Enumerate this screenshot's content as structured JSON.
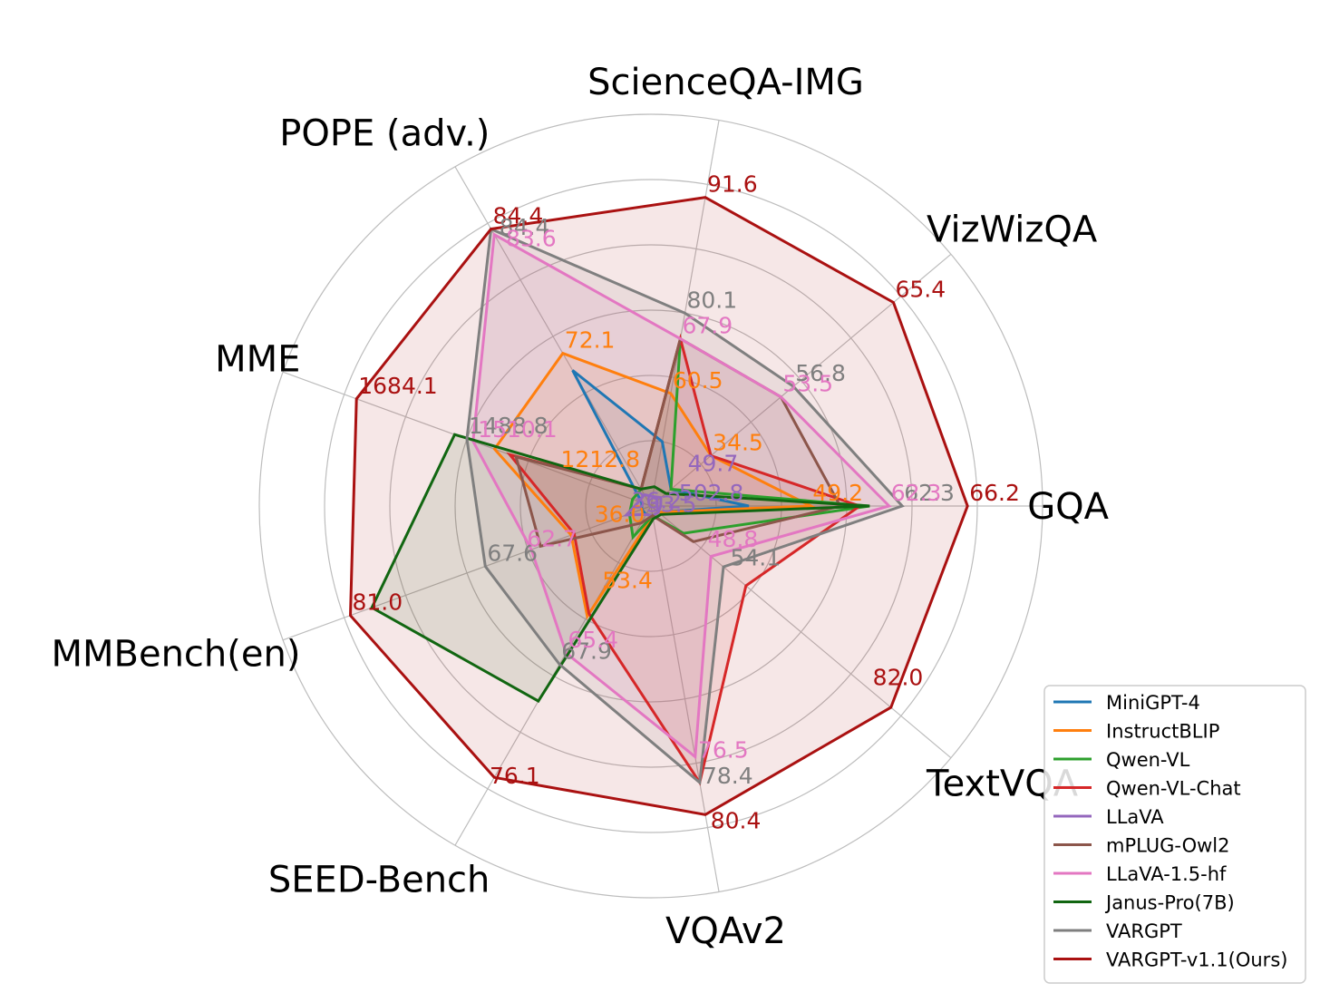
{
  "chart_data": {
    "type": "radar",
    "axes": [
      "GQA",
      "VizWizQA",
      "ScienceQA-IMG",
      "POPE (adv.)",
      "MME",
      "MMBench(en)",
      "SEED-Bench",
      "VQAv2",
      "TextVQA"
    ],
    "grid": true,
    "legend_position": "bottom-right",
    "series": [
      {
        "name": "MiniGPT-4",
        "color": "#1f77b4",
        "values": [
          0.3,
          0.08,
          0.2,
          0.48,
          0.03,
          0.03,
          0.03,
          0.03,
          0.03
        ]
      },
      {
        "name": "InstructBLIP",
        "color": "#ff7f0e",
        "values": [
          0.49,
          0.24,
          0.35,
          0.54,
          0.51,
          0.26,
          0.39,
          0.03,
          0.03
        ]
      },
      {
        "name": "Qwen-VL",
        "color": "#2ca02c",
        "values": [
          0.67,
          0.08,
          0.52,
          0.06,
          0.06,
          0.07,
          0.11,
          0.03,
          0.13
        ]
      },
      {
        "name": "Qwen-VL-Chat",
        "color": "#d62728",
        "values": [
          0.64,
          0.24,
          0.52,
          0.06,
          0.46,
          0.25,
          0.38,
          0.86,
          0.38
        ]
      },
      {
        "name": "LLaVA",
        "color": "#9467bd",
        "values": [
          0.03,
          0.04,
          0.03,
          0.04,
          0.04,
          0.08,
          0.03,
          0.03,
          0.03
        ]
      },
      {
        "name": "mPLUG-Owl2",
        "color": "#8c564b",
        "values": [
          0.58,
          0.52,
          0.52,
          0.06,
          0.44,
          0.36,
          0.06,
          0.03,
          0.17
        ]
      },
      {
        "name": "LLaVA-1.5-hf",
        "color": "#e377c2",
        "values": [
          0.73,
          0.52,
          0.52,
          0.96,
          0.58,
          0.39,
          0.52,
          0.78,
          0.24
        ]
      },
      {
        "name": "Janus-Pro(7B)",
        "color": "#116611",
        "values": [
          0.67,
          0.06,
          0.06,
          0.06,
          0.64,
          0.91,
          0.69,
          0.04,
          0.04
        ]
      },
      {
        "name": "VARGPT",
        "color": "#7f7f7f",
        "values": [
          0.77,
          0.57,
          0.6,
          0.98,
          0.6,
          0.54,
          0.56,
          0.86,
          0.29
        ]
      },
      {
        "name": "VARGPT-v1.1(Ours)",
        "color": "#aa1111",
        "values": [
          0.97,
          0.97,
          0.96,
          0.98,
          0.96,
          0.98,
          0.96,
          0.96,
          0.96
        ]
      }
    ],
    "annotations": [
      {
        "text": "49.2",
        "color": "#ff7f0e",
        "axis": 0,
        "r": 0.49
      },
      {
        "text": "66.2",
        "color": "#aa1111",
        "axis": 0,
        "r": 0.97
      },
      {
        "text": "62.3",
        "color": "#7f7f7f",
        "axis": 0,
        "r": 0.77
      },
      {
        "text": "62.3",
        "color": "#e377c2",
        "axis": 0,
        "r": 0.73
      },
      {
        "text": "502.8",
        "color": "#9467bd",
        "axis": 0,
        "r": 0.08
      },
      {
        "text": "65.4",
        "color": "#aa1111",
        "axis": 1,
        "r": 0.97
      },
      {
        "text": "56.8",
        "color": "#7f7f7f",
        "axis": 1,
        "r": 0.57
      },
      {
        "text": "53.5",
        "color": "#e377c2",
        "axis": 1,
        "r": 0.52
      },
      {
        "text": "34.5",
        "color": "#ff7f0e",
        "axis": 1,
        "r": 0.24
      },
      {
        "text": "49.7",
        "color": "#9467bd",
        "axis": 1,
        "r": 0.14
      },
      {
        "text": "91.6",
        "color": "#aa1111",
        "axis": 2,
        "r": 0.96
      },
      {
        "text": "80.1",
        "color": "#7f7f7f",
        "axis": 2,
        "r": 0.6
      },
      {
        "text": "67.9",
        "color": "#e377c2",
        "axis": 2,
        "r": 0.52
      },
      {
        "text": "60.5",
        "color": "#ff7f0e",
        "axis": 2,
        "r": 0.35
      },
      {
        "text": "84.4",
        "color": "#aa1111",
        "axis": 3,
        "r": 0.98
      },
      {
        "text": "84.4",
        "color": "#7f7f7f",
        "axis": 3,
        "r": 0.94
      },
      {
        "text": "83.6",
        "color": "#e377c2",
        "axis": 3,
        "r": 0.9
      },
      {
        "text": "72.1",
        "color": "#ff7f0e",
        "axis": 3,
        "r": 0.54
      },
      {
        "text": "1684.1",
        "color": "#aa1111",
        "axis": 4,
        "r": 0.96
      },
      {
        "text": "1488.8",
        "color": "#7f7f7f",
        "axis": 4,
        "r": 0.6
      },
      {
        "text": "1510.1",
        "color": "#e377c2",
        "axis": 4,
        "r": 0.57
      },
      {
        "text": "1212.8",
        "color": "#ff7f0e",
        "axis": 4,
        "r": 0.3
      },
      {
        "text": "81.0",
        "color": "#aa1111",
        "axis": 5,
        "r": 0.98
      },
      {
        "text": "67.6",
        "color": "#7f7f7f",
        "axis": 5,
        "r": 0.54
      },
      {
        "text": "62.7",
        "color": "#e377c2",
        "axis": 5,
        "r": 0.41
      },
      {
        "text": "36.0",
        "color": "#ff7f0e",
        "axis": 5,
        "r": 0.19
      },
      {
        "text": "36.2",
        "color": "#9467bd",
        "axis": 5,
        "r": 0.07
      },
      {
        "text": "76.1",
        "color": "#aa1111",
        "axis": 6,
        "r": 1.0
      },
      {
        "text": "67.9",
        "color": "#7f7f7f",
        "axis": 6,
        "r": 0.56
      },
      {
        "text": "65.4",
        "color": "#e377c2",
        "axis": 6,
        "r": 0.52
      },
      {
        "text": "53.4",
        "color": "#ff7f0e",
        "axis": 6,
        "r": 0.31
      },
      {
        "text": "33.5",
        "color": "#9467bd",
        "axis": 6,
        "r": 0.04
      },
      {
        "text": "80.4",
        "color": "#aa1111",
        "axis": 7,
        "r": 1.02
      },
      {
        "text": "78.4",
        "color": "#7f7f7f",
        "axis": 7,
        "r": 0.88
      },
      {
        "text": "76.5",
        "color": "#e377c2",
        "axis": 7,
        "r": 0.8
      },
      {
        "text": "82.0",
        "color": "#aa1111",
        "axis": 8,
        "r": 0.88
      },
      {
        "text": "54.1",
        "color": "#7f7f7f",
        "axis": 8,
        "r": 0.31
      },
      {
        "text": "48.8",
        "color": "#e377c2",
        "axis": 8,
        "r": 0.22
      }
    ]
  }
}
